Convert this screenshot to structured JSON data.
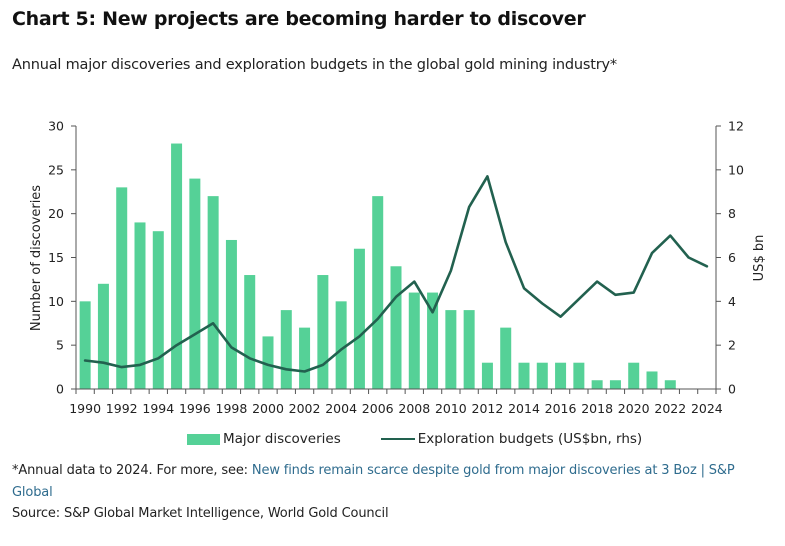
{
  "header": {
    "title": "Chart 5: New projects are becoming harder to discover",
    "subtitle": "Annual major discoveries and exploration budgets in the global gold mining industry*"
  },
  "legend": {
    "bars_label": "Major discoveries",
    "line_label": "Exploration budgets (US$bn, rhs)"
  },
  "footer": {
    "note_prefix": "*Annual data to 2024. For more, see: ",
    "note_link": "New finds remain scarce despite gold from major discoveries at 3 Boz | S&P Global",
    "source": "Source: S&P Global Market Intelligence, World Gold Council"
  },
  "colors": {
    "bars": "#55D197",
    "line": "#22614F",
    "axis": "#555555"
  },
  "chart_data": {
    "type": "bar",
    "title": "Chart 5: New projects are becoming harder to discover",
    "subtitle": "Annual major discoveries and exploration budgets in the global gold mining industry*",
    "categories": [
      "1990",
      "1991",
      "1992",
      "1993",
      "1994",
      "1995",
      "1996",
      "1997",
      "1998",
      "1999",
      "2000",
      "2001",
      "2002",
      "2003",
      "2004",
      "2005",
      "2006",
      "2007",
      "2008",
      "2009",
      "2010",
      "2011",
      "2012",
      "2013",
      "2014",
      "2015",
      "2016",
      "2017",
      "2018",
      "2019",
      "2020",
      "2021",
      "2022",
      "2023",
      "2024"
    ],
    "x_tick_labels": [
      "1990",
      "1992",
      "1994",
      "1996",
      "1998",
      "2000",
      "2002",
      "2004",
      "2006",
      "2008",
      "2010",
      "2012",
      "2014",
      "2016",
      "2018",
      "2020",
      "2022",
      "2024"
    ],
    "series": [
      {
        "name": "Major discoveries",
        "type": "bar",
        "axis": "left",
        "values": [
          10,
          12,
          23,
          19,
          18,
          28,
          24,
          22,
          17,
          13,
          6,
          9,
          7,
          13,
          10,
          16,
          22,
          14,
          11,
          11,
          9,
          9,
          3,
          7,
          3,
          3,
          3,
          3,
          1,
          1,
          3,
          2,
          1,
          0,
          0
        ]
      },
      {
        "name": "Exploration budgets (US$bn, rhs)",
        "type": "line",
        "axis": "right",
        "values": [
          1.3,
          1.2,
          1.0,
          1.1,
          1.4,
          2.0,
          2.5,
          3.0,
          1.9,
          1.4,
          1.1,
          0.9,
          0.8,
          1.1,
          1.8,
          2.4,
          3.2,
          4.2,
          4.9,
          3.5,
          5.4,
          8.3,
          9.7,
          6.7,
          4.6,
          3.9,
          3.3,
          4.1,
          4.9,
          4.3,
          4.4,
          6.2,
          7.0,
          6.0,
          5.6
        ]
      }
    ],
    "ylabel": "Number of discoveries",
    "ylim": [
      0,
      30
    ],
    "yticks": [
      0,
      5,
      10,
      15,
      20,
      25,
      30
    ],
    "y2label": "US$ bn",
    "y2lim": [
      0,
      12
    ],
    "y2ticks": [
      0,
      2,
      4,
      6,
      8,
      10,
      12
    ],
    "grid": false,
    "legend_position": "bottom"
  }
}
